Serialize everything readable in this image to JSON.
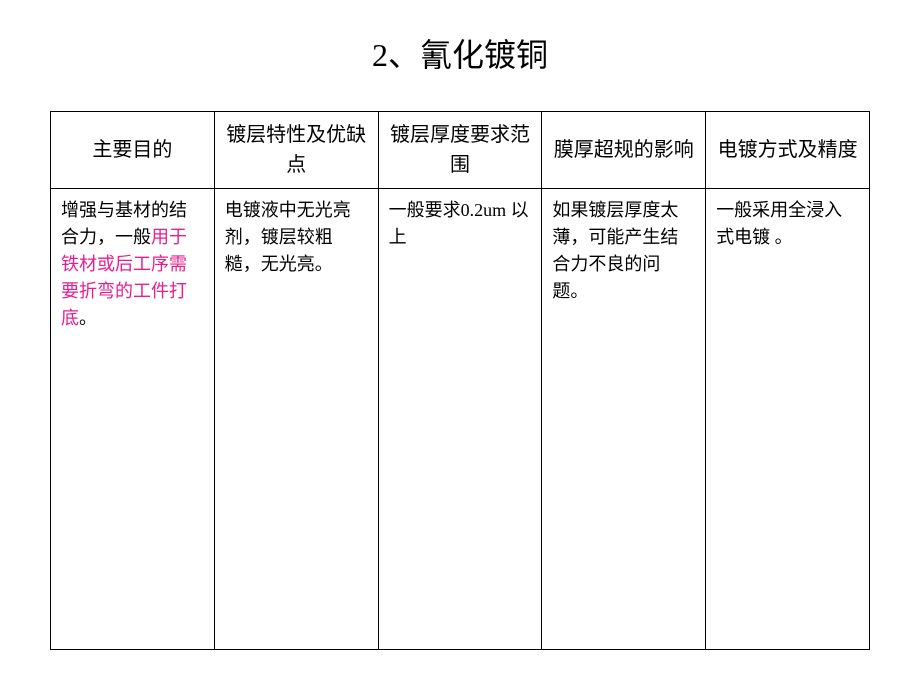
{
  "slide": {
    "title": "2、氰化镀铜",
    "table": {
      "columns": [
        "主要目的",
        "镀层特性及优缺点",
        "镀层厚度要求范围",
        "膜厚超规的影响",
        "电镀方式及精度"
      ],
      "rows": [
        {
          "col0_part1": "增强与基材的结合力，一般",
          "col0_part2": "用于铁材或后工序需要折弯的工件打底",
          "col0_part3": "。",
          "col1": "电镀液中无光亮剂，镀层较粗糙，无光亮。",
          "col2": "一般要求0.2um 以上",
          "col3": "如果镀层厚度太薄，可能产生结合力不良的问题。",
          "col4": "一般采用全浸入式电镀 。"
        }
      ]
    },
    "styling": {
      "background_color": "#ffffff",
      "border_color": "#000000",
      "text_color": "#000000",
      "highlight_color": "#e91e8c",
      "title_fontsize": 32,
      "header_fontsize": 20,
      "cell_fontsize": 18,
      "border_width": 1.5
    }
  }
}
